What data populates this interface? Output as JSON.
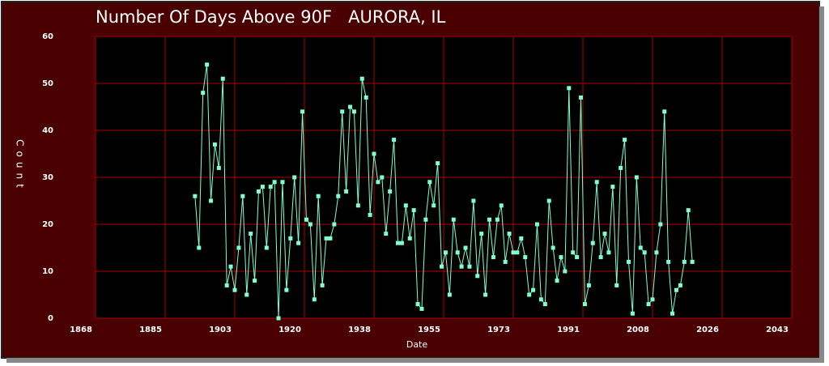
{
  "chart_data": {
    "type": "line",
    "title": "Number Of Days Above 90F   AURORA, IL",
    "x_label": "Date",
    "y_label": "Count",
    "xlim": [
      1868,
      2043
    ],
    "xticks": [
      {
        "value": 1868,
        "label": "1868"
      },
      {
        "value": 1885.5,
        "label": "1885"
      },
      {
        "value": 1903,
        "label": "1903"
      },
      {
        "value": 1920.5,
        "label": "1920"
      },
      {
        "value": 1938,
        "label": "1938"
      },
      {
        "value": 1955.5,
        "label": "1955"
      },
      {
        "value": 1973,
        "label": "1973"
      },
      {
        "value": 1990.5,
        "label": "1991"
      },
      {
        "value": 2008,
        "label": "2008"
      },
      {
        "value": 2025.5,
        "label": "2026"
      },
      {
        "value": 2043,
        "label": "2043"
      }
    ],
    "ylim": [
      0,
      60
    ],
    "yticks": [
      0,
      10,
      20,
      30,
      40,
      50,
      60
    ],
    "grid": true,
    "x": [
      1893,
      1894,
      1895,
      1896,
      1897,
      1898,
      1899,
      1900,
      1901,
      1902,
      1903,
      1904,
      1905,
      1906,
      1907,
      1908,
      1909,
      1910,
      1911,
      1912,
      1913,
      1914,
      1915,
      1916,
      1917,
      1918,
      1919,
      1920,
      1921,
      1922,
      1923,
      1924,
      1925,
      1926,
      1927,
      1928,
      1929,
      1930,
      1931,
      1932,
      1933,
      1934,
      1935,
      1936,
      1937,
      1938,
      1939,
      1940,
      1941,
      1942,
      1943,
      1944,
      1945,
      1946,
      1947,
      1948,
      1949,
      1950,
      1951,
      1952,
      1953,
      1954,
      1955,
      1956,
      1957,
      1958,
      1959,
      1960,
      1961,
      1962,
      1963,
      1964,
      1965,
      1966,
      1967,
      1968,
      1969,
      1970,
      1971,
      1972,
      1973,
      1974,
      1975,
      1976,
      1977,
      1978,
      1979,
      1980,
      1981,
      1982,
      1983,
      1984,
      1985,
      1986,
      1987,
      1988,
      1989,
      1990,
      1991,
      1992,
      1993,
      1994,
      1995,
      1996,
      1997,
      1998,
      1999,
      2000,
      2001,
      2002,
      2003,
      2004,
      2005,
      2006,
      2007,
      2008,
      2009,
      2010,
      2011,
      2012,
      2013,
      2014,
      2015,
      2016,
      2017,
      2018
    ],
    "series": [
      {
        "color": "#7fffd4",
        "values": [
          26,
          15,
          48,
          54,
          25,
          37,
          32,
          51,
          7,
          11,
          6,
          15,
          26,
          5,
          18,
          8,
          27,
          28,
          15,
          28,
          29,
          0,
          29,
          6,
          17,
          30,
          16,
          44,
          21,
          20,
          4,
          26,
          7,
          17,
          17,
          20,
          26,
          44,
          27,
          45,
          44,
          24,
          51,
          47,
          22,
          35,
          29,
          30,
          18,
          27,
          38,
          16,
          16,
          24,
          17,
          23,
          3,
          2,
          21,
          29,
          24,
          33,
          11,
          14,
          5,
          21,
          14,
          11,
          15,
          11,
          25,
          9,
          18,
          5,
          21,
          13,
          21,
          24,
          12,
          18,
          14,
          14,
          17,
          13,
          5,
          6,
          20,
          4,
          3,
          25,
          15,
          8,
          13,
          10,
          49,
          14,
          13,
          47,
          3,
          7,
          16,
          29,
          13,
          18,
          14,
          28,
          7,
          32,
          38,
          12,
          1,
          30,
          15,
          14,
          3,
          4,
          14,
          20,
          44,
          12,
          1,
          6,
          7,
          12,
          23,
          12
        ]
      }
    ]
  }
}
